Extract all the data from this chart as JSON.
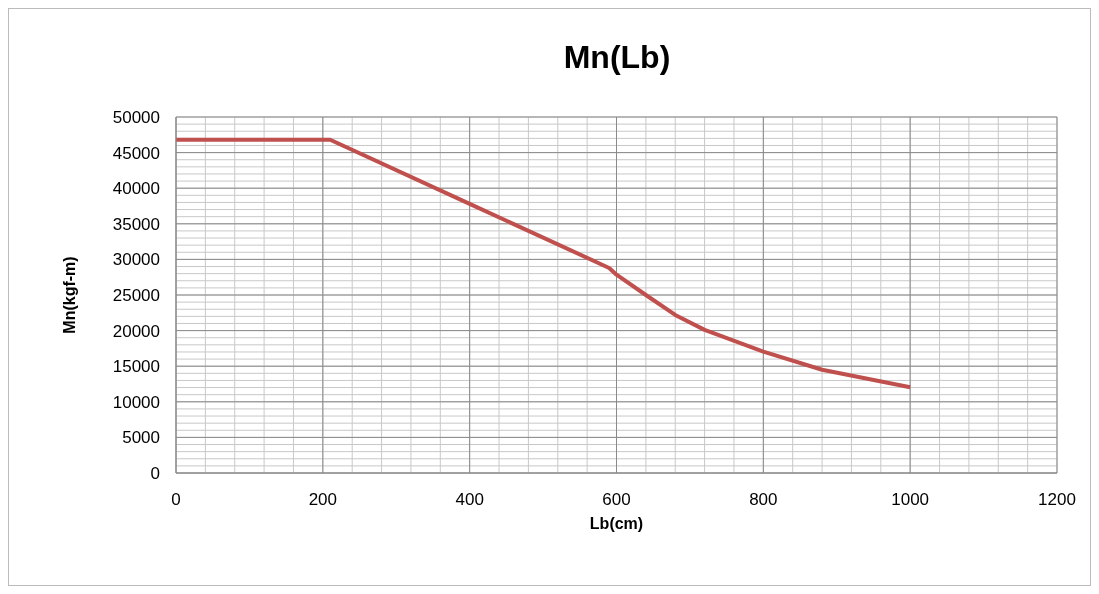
{
  "chart_data": {
    "type": "line",
    "title": "Mn(Lb)",
    "xlabel": "Lb(cm)",
    "ylabel": "Mn(kgf-m)",
    "x": [
      0,
      210,
      400,
      590,
      600,
      640,
      680,
      720,
      800,
      880,
      1000
    ],
    "series": [
      {
        "color": "#c0504d",
        "values": [
          46800,
          46800,
          37800,
          28800,
          27850,
          25000,
          22200,
          20100,
          17050,
          14500,
          12050
        ]
      }
    ],
    "xlim": [
      0,
      1200
    ],
    "xticks": [
      0,
      200,
      400,
      600,
      800,
      1000,
      1200
    ],
    "ylim": [
      0,
      50000
    ],
    "yticks": [
      0,
      5000,
      10000,
      15000,
      20000,
      25000,
      30000,
      35000,
      40000,
      45000,
      50000
    ],
    "grid": true,
    "marker": "none",
    "line_style": "solid"
  }
}
